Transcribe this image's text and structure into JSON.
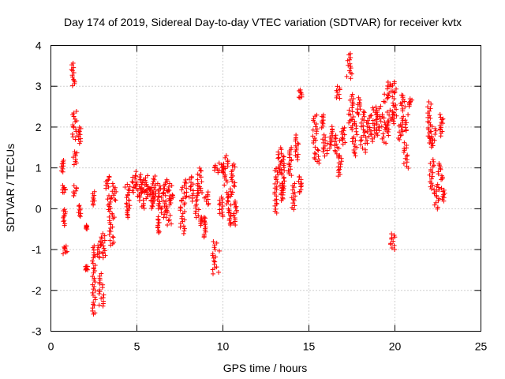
{
  "chart_data": {
    "type": "scatter",
    "title": "Day 174 of 2019, Sidereal Day-to-day VTEC variation (SDTVAR) for receiver kvtx",
    "xlabel": "GPS time / hours",
    "ylabel": "SDTVAR / TECUs",
    "xlim": [
      0,
      25
    ],
    "ylim": [
      -3,
      4
    ],
    "xticks": [
      0,
      5,
      10,
      15,
      20,
      25
    ],
    "yticks": [
      -3,
      -2,
      -1,
      0,
      1,
      2,
      3,
      4
    ],
    "grid": true,
    "marker": "+",
    "series_color": "#ff0000",
    "segments": [
      [
        0.6,
        0.8,
        0.9,
        1.2
      ],
      [
        0.65,
        0.85,
        0.4,
        0.55
      ],
      [
        0.7,
        0.9,
        -0.4,
        0.0
      ],
      [
        0.7,
        0.95,
        -1.1,
        -0.9
      ],
      [
        1.2,
        1.4,
        3.0,
        3.55
      ],
      [
        1.25,
        1.55,
        1.7,
        2.4
      ],
      [
        1.3,
        1.6,
        1.1,
        1.4
      ],
      [
        1.3,
        1.65,
        0.3,
        0.55
      ],
      [
        1.5,
        1.75,
        1.6,
        2.0
      ],
      [
        1.6,
        1.75,
        -0.2,
        0.1
      ],
      [
        2.05,
        2.1,
        -0.5,
        -0.4
      ],
      [
        2.0,
        2.15,
        -1.5,
        -1.4
      ],
      [
        2.4,
        2.55,
        0.1,
        0.4
      ],
      [
        2.4,
        2.6,
        -2.6,
        -0.9
      ],
      [
        2.7,
        2.9,
        -1.2,
        -0.8
      ],
      [
        2.8,
        3.2,
        -2.4,
        -1.6
      ],
      [
        2.9,
        3.2,
        -1.2,
        -0.6
      ],
      [
        3.2,
        3.4,
        0.5,
        0.8
      ],
      [
        3.3,
        3.6,
        -0.2,
        0.3
      ],
      [
        3.4,
        3.7,
        -0.9,
        -0.2
      ],
      [
        3.5,
        3.8,
        0.2,
        0.6
      ],
      [
        4.3,
        4.6,
        0.1,
        0.6
      ],
      [
        4.4,
        4.6,
        -0.2,
        0.1
      ],
      [
        4.7,
        5.0,
        0.4,
        0.8
      ],
      [
        4.9,
        5.3,
        0.3,
        0.9
      ],
      [
        5.1,
        5.5,
        0.0,
        0.7
      ],
      [
        5.3,
        5.7,
        0.4,
        0.8
      ],
      [
        5.5,
        5.9,
        0.2,
        0.6
      ],
      [
        5.6,
        6.0,
        0.0,
        0.5
      ],
      [
        5.9,
        6.1,
        0.2,
        0.8
      ],
      [
        6.2,
        6.4,
        0.0,
        0.6
      ],
      [
        6.2,
        6.3,
        -0.6,
        -0.2
      ],
      [
        6.4,
        6.7,
        -0.2,
        0.4
      ],
      [
        6.5,
        6.8,
        0.4,
        0.7
      ],
      [
        6.7,
        7.0,
        -0.4,
        0.3
      ],
      [
        6.8,
        7.1,
        0.2,
        0.6
      ],
      [
        7.5,
        7.8,
        -0.6,
        0.2
      ],
      [
        7.6,
        7.9,
        0.2,
        0.7
      ],
      [
        8.0,
        8.3,
        0.2,
        0.8
      ],
      [
        8.4,
        8.6,
        -0.2,
        0.5
      ],
      [
        8.5,
        8.8,
        0.4,
        1.0
      ],
      [
        8.6,
        8.8,
        -0.4,
        -0.2
      ],
      [
        8.9,
        9.2,
        0.1,
        0.4
      ],
      [
        8.9,
        9.0,
        -0.7,
        -0.2
      ],
      [
        9.4,
        9.8,
        -1.6,
        -0.8
      ],
      [
        9.5,
        9.8,
        0.9,
        1.1
      ],
      [
        9.8,
        10.0,
        -0.2,
        0.3
      ],
      [
        9.9,
        10.1,
        0.9,
        1.1
      ],
      [
        10.0,
        10.3,
        0.6,
        1.3
      ],
      [
        10.2,
        10.5,
        0.1,
        0.4
      ],
      [
        10.3,
        10.5,
        -0.4,
        0.0
      ],
      [
        10.4,
        10.7,
        0.3,
        1.1
      ],
      [
        10.6,
        10.8,
        -0.4,
        0.2
      ],
      [
        13.0,
        13.2,
        -0.1,
        1.0
      ],
      [
        13.2,
        13.4,
        0.9,
        1.5
      ],
      [
        13.3,
        13.5,
        0.2,
        0.6
      ],
      [
        13.4,
        13.6,
        0.4,
        1.3
      ],
      [
        13.8,
        14.0,
        0.8,
        1.5
      ],
      [
        14.0,
        14.2,
        0.0,
        0.6
      ],
      [
        14.2,
        14.4,
        1.2,
        1.8
      ],
      [
        14.4,
        14.6,
        2.7,
        2.9
      ],
      [
        14.4,
        14.6,
        0.4,
        0.8
      ],
      [
        15.2,
        15.5,
        1.6,
        2.3
      ],
      [
        15.3,
        15.6,
        1.1,
        1.5
      ],
      [
        15.7,
        15.9,
        2.0,
        2.3
      ],
      [
        15.8,
        16.1,
        1.3,
        1.8
      ],
      [
        16.2,
        16.4,
        1.5,
        2.0
      ],
      [
        16.5,
        16.8,
        1.3,
        1.8
      ],
      [
        16.6,
        16.8,
        2.7,
        3.0
      ],
      [
        16.7,
        16.9,
        0.8,
        1.3
      ],
      [
        16.9,
        17.1,
        1.6,
        2.0
      ],
      [
        17.2,
        17.5,
        3.2,
        3.8
      ],
      [
        17.3,
        17.6,
        2.0,
        2.8
      ],
      [
        17.5,
        17.8,
        1.3,
        2.2
      ],
      [
        17.8,
        18.0,
        2.3,
        2.7
      ],
      [
        18.0,
        18.3,
        1.4,
        2.4
      ],
      [
        18.3,
        18.7,
        1.6,
        2.3
      ],
      [
        18.6,
        19.0,
        1.7,
        2.5
      ],
      [
        18.9,
        19.2,
        1.8,
        2.5
      ],
      [
        19.2,
        19.7,
        1.6,
        2.3
      ],
      [
        19.3,
        19.8,
        2.6,
        3.1
      ],
      [
        19.6,
        20.1,
        2.7,
        3.1
      ],
      [
        19.5,
        19.9,
        1.9,
        2.4
      ],
      [
        19.8,
        20.1,
        2.1,
        2.6
      ],
      [
        19.7,
        20.0,
        -1.0,
        -0.6
      ],
      [
        20.2,
        20.5,
        1.7,
        2.1
      ],
      [
        20.3,
        20.6,
        2.4,
        2.8
      ],
      [
        20.4,
        20.8,
        1.9,
        2.3
      ],
      [
        20.5,
        20.8,
        1.0,
        1.6
      ],
      [
        20.8,
        21.0,
        2.5,
        2.7
      ],
      [
        21.9,
        22.1,
        1.6,
        2.6
      ],
      [
        22.0,
        22.3,
        0.4,
        1.2
      ],
      [
        22.1,
        22.4,
        1.5,
        2.0
      ],
      [
        22.3,
        22.6,
        0.0,
        0.6
      ],
      [
        22.5,
        22.8,
        0.7,
        1.1
      ],
      [
        22.6,
        22.8,
        1.8,
        2.3
      ],
      [
        22.7,
        22.9,
        0.2,
        0.5
      ]
    ]
  }
}
